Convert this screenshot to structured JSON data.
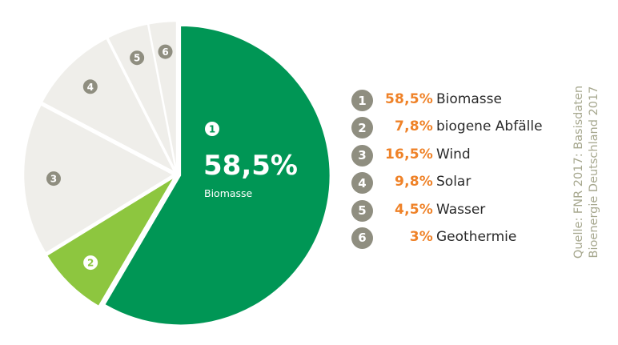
{
  "chart_data": {
    "type": "pie",
    "slices": [
      {
        "id": "1",
        "value": 58.5,
        "value_label": "58,5%",
        "label": "Biomasse",
        "color": "#009655"
      },
      {
        "id": "2",
        "value": 7.8,
        "value_label": "7,8%",
        "label": "biogene Abfälle",
        "color": "#8dc63f"
      },
      {
        "id": "3",
        "value": 16.5,
        "value_label": "16,5%",
        "label": "Wind",
        "color": "#efeeea"
      },
      {
        "id": "4",
        "value": 9.8,
        "value_label": "9,8%",
        "label": "Solar",
        "color": "#efeeea"
      },
      {
        "id": "5",
        "value": 4.5,
        "value_label": "4,5%",
        "label": "Wasser",
        "color": "#efeeea"
      },
      {
        "id": "6",
        "value": 3,
        "value_label": "3%",
        "label": "Geothermie",
        "color": "#efeeea"
      }
    ],
    "highlight": {
      "id": "1",
      "value_label": "58,5%",
      "label": "Biomasse"
    },
    "source_lines": [
      "Quelle: FNR 2017: Basisdaten",
      "Bioenergie Deutschland 2017"
    ],
    "colors": {
      "value_text": "#ef8228",
      "badge": "#8f8e80",
      "source_text": "#a7a88f"
    }
  }
}
